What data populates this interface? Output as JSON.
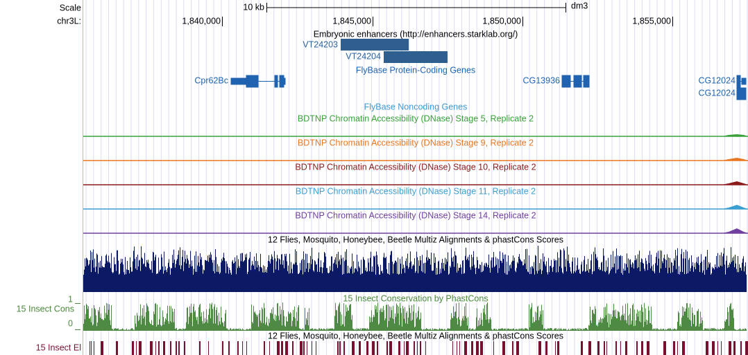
{
  "header": {
    "scale_label": "Scale",
    "chrom_label": "chr3L:",
    "scale_bar": "10 kb",
    "assembly": "dm3",
    "positions": [
      "1,840,000",
      "1,845,000",
      "1,850,000",
      "1,855,000"
    ]
  },
  "tracks": {
    "enhancers": {
      "title": "Embryonic enhancers (http://enhancers.starklab.org/)",
      "features": [
        "VT24203",
        "VT24204"
      ]
    },
    "coding": {
      "title": "FlyBase Protein-Coding Genes",
      "features": [
        "Cpr62Bc",
        "CG13936",
        "CG12024",
        "CG12024"
      ]
    },
    "noncoding": {
      "title": "FlyBase Noncoding Genes"
    },
    "dnase": [
      "BDTNP Chromatin Accessibility (DNase) Stage 5, Replicate 2",
      "BDTNP Chromatin Accessibility (DNase) Stage 9, Replicate 2",
      "BDTNP Chromatin Accessibility (DNase) Stage 10, Replicate 2",
      "BDTNP Chromatin Accessibility (DNase) Stage 11, Replicate 2",
      "BDTNP Chromatin Accessibility (DNase) Stage 14, Replicate 2"
    ],
    "multiz": {
      "title": "12 Flies, Mosquito, Honeybee, Beetle Multiz Alignments & phastCons Scores"
    },
    "phastcons": {
      "title": "15 Insect Conservation by PhastCons",
      "side_label": "15 Insect Cons",
      "max_label": "1",
      "min_label": "0"
    },
    "elements": {
      "title": "12 Flies, Mosquito, Honeybee, Beetle Multiz Alignments & phastCons Scores",
      "side_label": "15 Insect El"
    }
  }
}
